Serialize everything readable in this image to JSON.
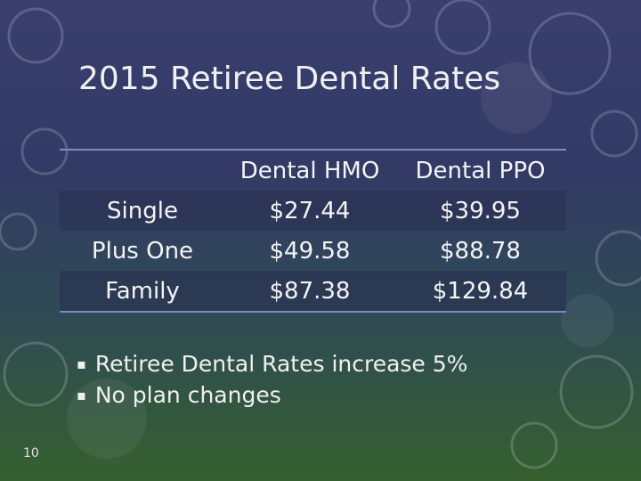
{
  "slide": {
    "title": "2015 Retiree Dental Rates",
    "table": {
      "header": [
        "Dental HMO",
        "Dental PPO"
      ],
      "rows": [
        [
          "Single",
          "$27.44",
          "$39.95"
        ],
        [
          "Plus One",
          "$49.58",
          "$88.78"
        ],
        [
          "Family",
          "$87.38",
          "$129.84"
        ]
      ]
    },
    "bullets": [
      "Retiree Dental Rates increase 5%",
      "No plan changes"
    ],
    "page_number": "10"
  }
}
